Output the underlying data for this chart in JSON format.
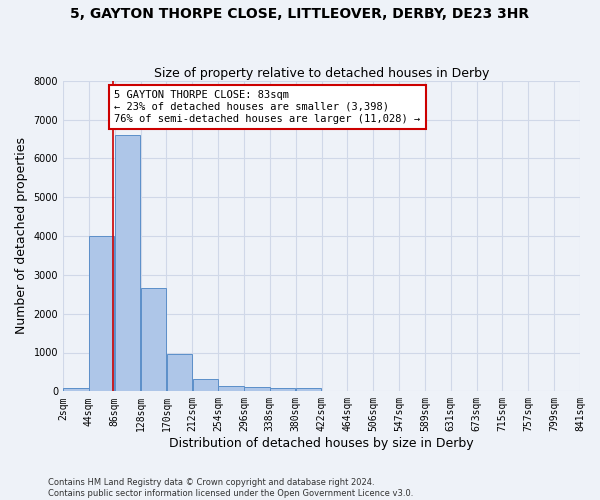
{
  "title": "5, GAYTON THORPE CLOSE, LITTLEOVER, DERBY, DE23 3HR",
  "subtitle": "Size of property relative to detached houses in Derby",
  "xlabel": "Distribution of detached houses by size in Derby",
  "ylabel": "Number of detached properties",
  "footer_line1": "Contains HM Land Registry data © Crown copyright and database right 2024.",
  "footer_line2": "Contains public sector information licensed under the Open Government Licence v3.0.",
  "bin_labels": [
    "2sqm",
    "44sqm",
    "86sqm",
    "128sqm",
    "170sqm",
    "212sqm",
    "254sqm",
    "296sqm",
    "338sqm",
    "380sqm",
    "422sqm",
    "464sqm",
    "506sqm",
    "547sqm",
    "589sqm",
    "631sqm",
    "673sqm",
    "715sqm",
    "757sqm",
    "799sqm",
    "841sqm"
  ],
  "bar_values": [
    75,
    4000,
    6600,
    2650,
    960,
    320,
    130,
    120,
    80,
    75,
    0,
    0,
    0,
    0,
    0,
    0,
    0,
    0,
    0,
    0
  ],
  "bar_color": "#aec6e8",
  "bar_edge_color": "#5b8fc9",
  "grid_color": "#d0d8e8",
  "background_color": "#eef2f8",
  "red_line_x": 83,
  "annotation_line1": "5 GAYTON THORPE CLOSE: 83sqm",
  "annotation_line2": "← 23% of detached houses are smaller (3,398)",
  "annotation_line3": "76% of semi-detached houses are larger (11,028) →",
  "annotation_box_color": "#ffffff",
  "annotation_box_edge_color": "#cc0000",
  "red_line_color": "#cc0000",
  "ylim": [
    0,
    8000
  ],
  "yticks": [
    0,
    1000,
    2000,
    3000,
    4000,
    5000,
    6000,
    7000,
    8000
  ],
  "title_fontsize": 10,
  "subtitle_fontsize": 9,
  "xlabel_fontsize": 9,
  "ylabel_fontsize": 9,
  "tick_fontsize": 7,
  "annotation_fontsize": 7.5
}
